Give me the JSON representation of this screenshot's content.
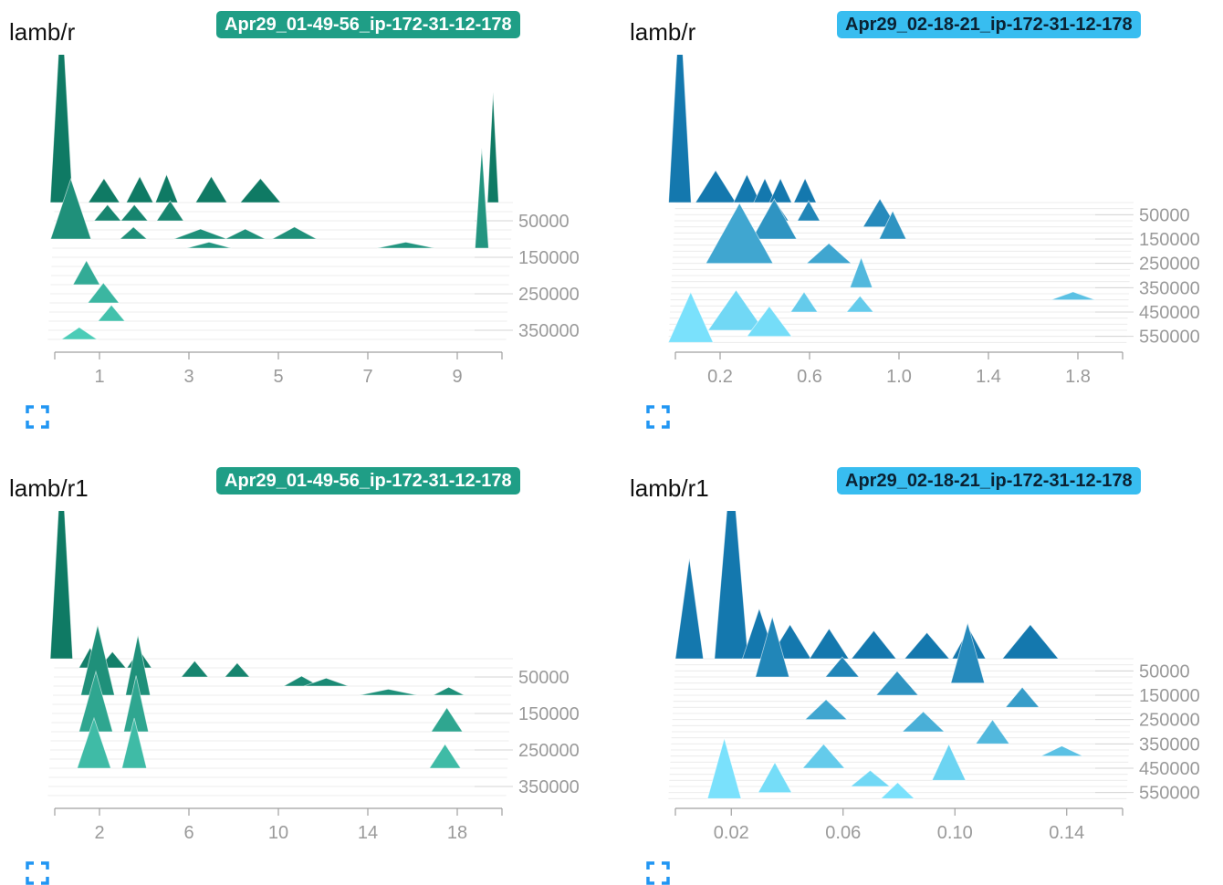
{
  "panels": [
    {
      "title": "lamb/r",
      "run": "Apr29_01-49-56_ip-172-31-12-178",
      "badge_color": "#1f9e86",
      "badge_text_color": "#ffffff"
    },
    {
      "title": "lamb/r",
      "run": "Apr29_02-18-21_ip-172-31-12-178",
      "badge_color": "#38bdf0",
      "badge_text_color": "#0b2233"
    },
    {
      "title": "lamb/r1",
      "run": "Apr29_01-49-56_ip-172-31-12-178",
      "badge_color": "#1f9e86",
      "badge_text_color": "#ffffff"
    },
    {
      "title": "lamb/r1",
      "run": "Apr29_02-18-21_ip-172-31-12-178",
      "badge_color": "#38bdf0",
      "badge_text_color": "#0b2233"
    }
  ],
  "icons": {
    "expand": "fullscreen-expand-icon"
  },
  "chart_data": [
    {
      "type": "area",
      "subtype": "offset-histogram",
      "title": "lamb/r",
      "series_color_dark": "#0f7a64",
      "series_color_light": "#4fd1bc",
      "x_ticks": [
        "1",
        "3",
        "5",
        "7",
        "9"
      ],
      "x_tick_values": [
        1,
        3,
        5,
        7,
        9
      ],
      "xlim": [
        0,
        10
      ],
      "y_ticks": [
        "50000",
        "150000",
        "250000",
        "350000"
      ],
      "y_tick_values": [
        50000,
        150000,
        250000,
        350000
      ],
      "ylim": [
        0,
        400000
      ],
      "steps": [
        0,
        25000,
        50000,
        75000,
        100000,
        125000,
        150000,
        175000,
        200000,
        225000,
        250000,
        275000,
        300000,
        325000,
        350000,
        375000
      ],
      "peaks": [
        {
          "step": 0,
          "x": 0.15,
          "h": 1.0,
          "w": 0.5
        },
        {
          "step": 0,
          "x": 1.1,
          "h": 0.12,
          "w": 0.7
        },
        {
          "step": 0,
          "x": 1.9,
          "h": 0.13,
          "w": 0.6
        },
        {
          "step": 0,
          "x": 2.5,
          "h": 0.14,
          "w": 0.5
        },
        {
          "step": 0,
          "x": 3.5,
          "h": 0.13,
          "w": 0.7
        },
        {
          "step": 0,
          "x": 4.6,
          "h": 0.12,
          "w": 0.9
        },
        {
          "step": 0,
          "x": 9.8,
          "h": 0.55,
          "w": 0.25
        },
        {
          "step": 50000,
          "x": 1.2,
          "h": 0.08,
          "w": 0.6
        },
        {
          "step": 50000,
          "x": 1.8,
          "h": 0.08,
          "w": 0.6
        },
        {
          "step": 50000,
          "x": 2.6,
          "h": 0.1,
          "w": 0.6
        },
        {
          "step": 100000,
          "x": 0.4,
          "h": 0.3,
          "w": 0.9
        },
        {
          "step": 100000,
          "x": 1.8,
          "h": 0.06,
          "w": 0.6
        },
        {
          "step": 100000,
          "x": 3.3,
          "h": 0.05,
          "w": 1.2
        },
        {
          "step": 100000,
          "x": 4.3,
          "h": 0.05,
          "w": 0.9
        },
        {
          "step": 100000,
          "x": 5.4,
          "h": 0.06,
          "w": 1.0
        },
        {
          "step": 125000,
          "x": 3.5,
          "h": 0.03,
          "w": 1.0
        },
        {
          "step": 125000,
          "x": 7.9,
          "h": 0.03,
          "w": 1.3
        },
        {
          "step": 125000,
          "x": 9.6,
          "h": 0.5,
          "w": 0.3
        },
        {
          "step": 225000,
          "x": 0.8,
          "h": 0.12,
          "w": 0.6
        },
        {
          "step": 275000,
          "x": 1.2,
          "h": 0.1,
          "w": 0.7
        },
        {
          "step": 325000,
          "x": 1.4,
          "h": 0.08,
          "w": 0.6
        },
        {
          "step": 375000,
          "x": 0.7,
          "h": 0.06,
          "w": 0.8
        }
      ]
    },
    {
      "type": "area",
      "subtype": "offset-histogram",
      "title": "lamb/r",
      "series_color_dark": "#1478ae",
      "series_color_light": "#7ee6ff",
      "x_ticks": [
        "0.2",
        "0.6",
        "1.0",
        "1.4",
        "1.8"
      ],
      "x_tick_values": [
        0.2,
        0.6,
        1.0,
        1.4,
        1.8
      ],
      "xlim": [
        0,
        2.0
      ],
      "y_ticks": [
        "50000",
        "150000",
        "250000",
        "350000",
        "450000",
        "550000"
      ],
      "y_tick_values": [
        50000,
        150000,
        250000,
        350000,
        450000,
        550000
      ],
      "ylim": [
        0,
        600000
      ],
      "steps": [
        0,
        25000,
        50000,
        75000,
        100000,
        125000,
        150000,
        175000,
        200000,
        225000,
        250000,
        275000,
        300000,
        325000,
        350000,
        375000,
        400000,
        425000,
        450000,
        475000,
        500000,
        525000,
        550000,
        575000
      ],
      "peaks": [
        {
          "step": 0,
          "x": 0.02,
          "h": 1.0,
          "w": 0.1
        },
        {
          "step": 0,
          "x": 0.18,
          "h": 0.16,
          "w": 0.18
        },
        {
          "step": 0,
          "x": 0.32,
          "h": 0.14,
          "w": 0.12
        },
        {
          "step": 0,
          "x": 0.4,
          "h": 0.12,
          "w": 0.1
        },
        {
          "step": 0,
          "x": 0.47,
          "h": 0.12,
          "w": 0.1
        },
        {
          "step": 0,
          "x": 0.58,
          "h": 0.12,
          "w": 0.1
        },
        {
          "step": 75000,
          "x": 0.45,
          "h": 0.1,
          "w": 0.12
        },
        {
          "step": 75000,
          "x": 0.6,
          "h": 0.1,
          "w": 0.1
        },
        {
          "step": 100000,
          "x": 0.92,
          "h": 0.14,
          "w": 0.15
        },
        {
          "step": 150000,
          "x": 0.98,
          "h": 0.14,
          "w": 0.12
        },
        {
          "step": 150000,
          "x": 0.45,
          "h": 0.2,
          "w": 0.2
        },
        {
          "step": 250000,
          "x": 0.3,
          "h": 0.3,
          "w": 0.3
        },
        {
          "step": 250000,
          "x": 0.7,
          "h": 0.1,
          "w": 0.2
        },
        {
          "step": 350000,
          "x": 0.85,
          "h": 0.15,
          "w": 0.1
        },
        {
          "step": 400000,
          "x": 1.8,
          "h": 0.04,
          "w": 0.2
        },
        {
          "step": 450000,
          "x": 0.6,
          "h": 0.1,
          "w": 0.12
        },
        {
          "step": 450000,
          "x": 0.85,
          "h": 0.08,
          "w": 0.12
        },
        {
          "step": 525000,
          "x": 0.3,
          "h": 0.2,
          "w": 0.25
        },
        {
          "step": 550000,
          "x": 0.45,
          "h": 0.15,
          "w": 0.2
        },
        {
          "step": 575000,
          "x": 0.1,
          "h": 0.25,
          "w": 0.2
        }
      ]
    },
    {
      "type": "area",
      "subtype": "offset-histogram",
      "title": "lamb/r1",
      "series_color_dark": "#0f7a64",
      "series_color_light": "#4fd1bc",
      "x_ticks": [
        "2",
        "6",
        "10",
        "14",
        "18"
      ],
      "x_tick_values": [
        2,
        6,
        10,
        14,
        18
      ],
      "xlim": [
        0,
        20
      ],
      "y_ticks": [
        "50000",
        "150000",
        "250000",
        "350000"
      ],
      "y_tick_values": [
        50000,
        150000,
        250000,
        350000
      ],
      "ylim": [
        0,
        400000
      ],
      "steps": [
        0,
        25000,
        50000,
        75000,
        100000,
        125000,
        150000,
        175000,
        200000,
        225000,
        250000,
        275000,
        300000,
        325000,
        350000,
        375000
      ],
      "peaks": [
        {
          "step": 0,
          "x": 0.3,
          "h": 1.0,
          "w": 1.0
        },
        {
          "step": 25000,
          "x": 1.6,
          "h": 0.1,
          "w": 1.0
        },
        {
          "step": 25000,
          "x": 2.6,
          "h": 0.08,
          "w": 1.2
        },
        {
          "step": 25000,
          "x": 3.8,
          "h": 0.09,
          "w": 1.1
        },
        {
          "step": 50000,
          "x": 6.3,
          "h": 0.08,
          "w": 1.2
        },
        {
          "step": 50000,
          "x": 8.2,
          "h": 0.07,
          "w": 1.1
        },
        {
          "step": 75000,
          "x": 11.1,
          "h": 0.05,
          "w": 1.6
        },
        {
          "step": 75000,
          "x": 12.2,
          "h": 0.04,
          "w": 2.0
        },
        {
          "step": 100000,
          "x": 15.0,
          "h": 0.03,
          "w": 2.6
        },
        {
          "step": 100000,
          "x": 17.7,
          "h": 0.04,
          "w": 1.4
        },
        {
          "step": 100000,
          "x": 2.0,
          "h": 0.35,
          "w": 1.5
        },
        {
          "step": 100000,
          "x": 3.8,
          "h": 0.3,
          "w": 1.1
        },
        {
          "step": 200000,
          "x": 2.0,
          "h": 0.3,
          "w": 1.5
        },
        {
          "step": 200000,
          "x": 3.8,
          "h": 0.28,
          "w": 1.1
        },
        {
          "step": 200000,
          "x": 17.7,
          "h": 0.12,
          "w": 1.4
        },
        {
          "step": 300000,
          "x": 2.0,
          "h": 0.25,
          "w": 1.5
        },
        {
          "step": 300000,
          "x": 3.8,
          "h": 0.25,
          "w": 1.1
        },
        {
          "step": 300000,
          "x": 17.7,
          "h": 0.12,
          "w": 1.4
        }
      ]
    },
    {
      "type": "area",
      "subtype": "offset-histogram",
      "title": "lamb/r1",
      "series_color_dark": "#1478ae",
      "series_color_light": "#7ee6ff",
      "x_ticks": [
        "0.02",
        "0.06",
        "0.10",
        "0.14"
      ],
      "x_tick_values": [
        0.02,
        0.06,
        0.1,
        0.14
      ],
      "xlim": [
        0.0,
        0.16
      ],
      "y_ticks": [
        "50000",
        "150000",
        "250000",
        "350000",
        "450000",
        "550000"
      ],
      "y_tick_values": [
        50000,
        150000,
        250000,
        350000,
        450000,
        550000
      ],
      "ylim": [
        0,
        600000
      ],
      "steps": [
        0,
        25000,
        50000,
        75000,
        100000,
        125000,
        150000,
        175000,
        200000,
        225000,
        250000,
        275000,
        300000,
        325000,
        350000,
        375000,
        400000,
        425000,
        450000,
        475000,
        500000,
        525000,
        550000,
        575000
      ],
      "peaks": [
        {
          "step": 0,
          "x": 0.005,
          "h": 0.5,
          "w": 0.01
        },
        {
          "step": 0,
          "x": 0.02,
          "h": 1.0,
          "w": 0.012
        },
        {
          "step": 0,
          "x": 0.03,
          "h": 0.25,
          "w": 0.012
        },
        {
          "step": 0,
          "x": 0.041,
          "h": 0.17,
          "w": 0.015
        },
        {
          "step": 0,
          "x": 0.055,
          "h": 0.15,
          "w": 0.014
        },
        {
          "step": 0,
          "x": 0.071,
          "h": 0.14,
          "w": 0.016
        },
        {
          "step": 0,
          "x": 0.09,
          "h": 0.13,
          "w": 0.016
        },
        {
          "step": 0,
          "x": 0.105,
          "h": 0.15,
          "w": 0.012
        },
        {
          "step": 0,
          "x": 0.127,
          "h": 0.17,
          "w": 0.02
        },
        {
          "step": 75000,
          "x": 0.035,
          "h": 0.3,
          "w": 0.012
        },
        {
          "step": 75000,
          "x": 0.06,
          "h": 0.1,
          "w": 0.012
        },
        {
          "step": 100000,
          "x": 0.105,
          "h": 0.3,
          "w": 0.012
        },
        {
          "step": 150000,
          "x": 0.08,
          "h": 0.12,
          "w": 0.015
        },
        {
          "step": 200000,
          "x": 0.125,
          "h": 0.1,
          "w": 0.012
        },
        {
          "step": 250000,
          "x": 0.055,
          "h": 0.1,
          "w": 0.015
        },
        {
          "step": 300000,
          "x": 0.09,
          "h": 0.1,
          "w": 0.015
        },
        {
          "step": 350000,
          "x": 0.115,
          "h": 0.12,
          "w": 0.012
        },
        {
          "step": 400000,
          "x": 0.14,
          "h": 0.05,
          "w": 0.015
        },
        {
          "step": 450000,
          "x": 0.055,
          "h": 0.12,
          "w": 0.015
        },
        {
          "step": 500000,
          "x": 0.1,
          "h": 0.18,
          "w": 0.012
        },
        {
          "step": 525000,
          "x": 0.072,
          "h": 0.08,
          "w": 0.014
        },
        {
          "step": 550000,
          "x": 0.038,
          "h": 0.15,
          "w": 0.012
        },
        {
          "step": 575000,
          "x": 0.02,
          "h": 0.3,
          "w": 0.012
        },
        {
          "step": 575000,
          "x": 0.082,
          "h": 0.08,
          "w": 0.012
        }
      ]
    }
  ]
}
